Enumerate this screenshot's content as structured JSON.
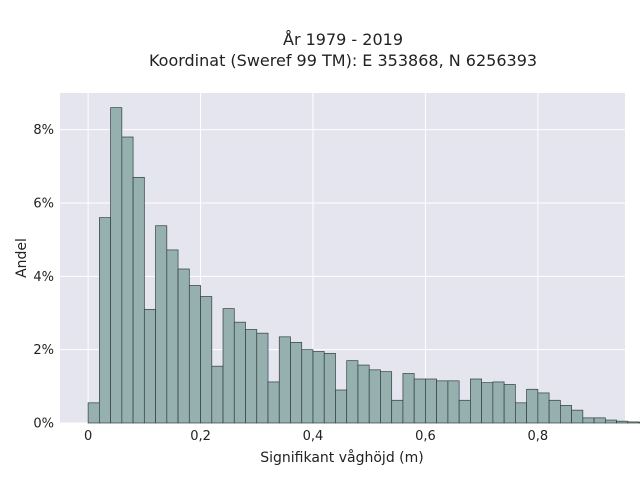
{
  "chart_data": {
    "type": "bar",
    "title_line1": "År 1979 - 2019",
    "title_line2": "Koordinat (Sweref 99 TM): E 353868, N 6256393",
    "xlabel": "Signifikant våghöjd (m)",
    "ylabel": "Andel",
    "xlim": [
      -0.05,
      0.955
    ],
    "ylim": [
      0,
      9.0
    ],
    "bin_width": 0.02,
    "bin_start": 0.0,
    "values": [
      0.55,
      5.6,
      8.6,
      7.8,
      6.7,
      3.1,
      5.38,
      4.72,
      4.2,
      3.75,
      3.45,
      1.55,
      3.12,
      2.75,
      2.55,
      2.45,
      1.12,
      2.35,
      2.2,
      2.0,
      1.95,
      1.9,
      0.9,
      1.7,
      1.58,
      1.45,
      1.4,
      0.62,
      1.35,
      1.2,
      1.2,
      1.15,
      1.15,
      0.62,
      1.2,
      1.1,
      1.12,
      1.05,
      0.55,
      0.92,
      0.82,
      0.62,
      0.48,
      0.35,
      0.14,
      0.14,
      0.08,
      0.05,
      0.03,
      0.02
    ],
    "xticks": [
      0,
      0.2,
      0.4,
      0.6,
      0.8
    ],
    "xtick_labels": [
      "0",
      "0,2",
      "0,4",
      "0,6",
      "0,8"
    ],
    "yticks": [
      0,
      2,
      4,
      6,
      8
    ],
    "ytick_labels": [
      "0%",
      "2%",
      "4%",
      "6%",
      "8%"
    ],
    "grid": true,
    "legend": "none",
    "colors": {
      "bar_fill": "#95b0ae",
      "bar_stroke": "#2f3f3e",
      "plot_bg": "#e5e5f0",
      "grid": "#ffffff"
    }
  }
}
